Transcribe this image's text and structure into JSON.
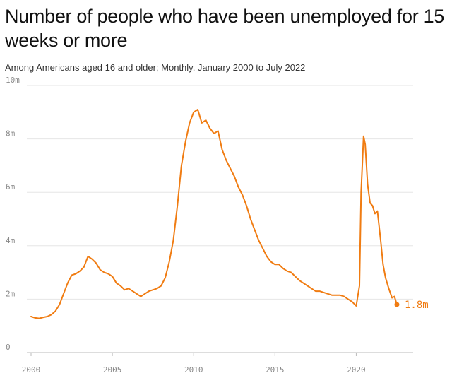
{
  "title": "Number of people who have been unemployed for 15 weeks or more",
  "subtitle": "Among Americans aged 16 and older; Monthly, January 2000 to July 2022",
  "colors": {
    "line": "#f07c12",
    "grid": "#e6e6e6",
    "axis": "#bbbbbb",
    "tick_text": "#888888"
  },
  "chart_data": {
    "type": "line",
    "title": "Number of people who have been unemployed for 15 weeks or more",
    "subtitle": "Among Americans aged 16 and older; Monthly, January 2000 to July 2022",
    "xlabel": "",
    "ylabel": "",
    "xlim": [
      2000,
      2023.5
    ],
    "ylim": [
      0,
      10
    ],
    "grid": true,
    "x_ticks": [
      {
        "value": 2000,
        "label": "2000"
      },
      {
        "value": 2005,
        "label": "2005"
      },
      {
        "value": 2010,
        "label": "2010"
      },
      {
        "value": 2015,
        "label": "2015"
      },
      {
        "value": 2020,
        "label": "2020"
      }
    ],
    "y_ticks": [
      {
        "value": 0,
        "label": "0"
      },
      {
        "value": 2,
        "label": "2m"
      },
      {
        "value": 4,
        "label": "4m"
      },
      {
        "value": 6,
        "label": "6m"
      },
      {
        "value": 8,
        "label": "8m"
      },
      {
        "value": 10,
        "label": "10m"
      }
    ],
    "end_label": "1.8m",
    "series": [
      {
        "values_unit": "millions",
        "x": [
          2000.0,
          2000.25,
          2000.5,
          2000.75,
          2001.0,
          2001.25,
          2001.5,
          2001.75,
          2002.0,
          2002.25,
          2002.5,
          2002.75,
          2003.0,
          2003.25,
          2003.5,
          2003.75,
          2004.0,
          2004.25,
          2004.5,
          2004.75,
          2005.0,
          2005.25,
          2005.5,
          2005.75,
          2006.0,
          2006.25,
          2006.5,
          2006.75,
          2007.0,
          2007.25,
          2007.5,
          2007.75,
          2008.0,
          2008.25,
          2008.5,
          2008.75,
          2009.0,
          2009.25,
          2009.5,
          2009.75,
          2010.0,
          2010.25,
          2010.5,
          2010.75,
          2011.0,
          2011.25,
          2011.5,
          2011.75,
          2012.0,
          2012.25,
          2012.5,
          2012.75,
          2013.0,
          2013.25,
          2013.5,
          2013.75,
          2014.0,
          2014.25,
          2014.5,
          2014.75,
          2015.0,
          2015.25,
          2015.5,
          2015.75,
          2016.0,
          2016.25,
          2016.5,
          2016.75,
          2017.0,
          2017.25,
          2017.5,
          2017.75,
          2018.0,
          2018.25,
          2018.5,
          2018.75,
          2019.0,
          2019.25,
          2019.5,
          2019.75,
          2020.0,
          2020.2,
          2020.3,
          2020.45,
          2020.55,
          2020.7,
          2020.85,
          2021.0,
          2021.15,
          2021.3,
          2021.5,
          2021.65,
          2021.8,
          2022.0,
          2022.2,
          2022.35,
          2022.5
        ],
        "values": [
          1.35,
          1.3,
          1.28,
          1.32,
          1.35,
          1.42,
          1.55,
          1.8,
          2.2,
          2.6,
          2.9,
          2.95,
          3.05,
          3.2,
          3.6,
          3.5,
          3.35,
          3.1,
          3.0,
          2.95,
          2.85,
          2.6,
          2.5,
          2.35,
          2.4,
          2.3,
          2.2,
          2.1,
          2.2,
          2.3,
          2.35,
          2.4,
          2.5,
          2.8,
          3.4,
          4.2,
          5.5,
          7.0,
          7.9,
          8.6,
          9.0,
          9.1,
          8.6,
          8.7,
          8.4,
          8.2,
          8.3,
          7.6,
          7.2,
          6.9,
          6.6,
          6.2,
          5.9,
          5.5,
          5.0,
          4.6,
          4.2,
          3.9,
          3.6,
          3.4,
          3.3,
          3.3,
          3.15,
          3.05,
          3.0,
          2.85,
          2.7,
          2.6,
          2.5,
          2.4,
          2.3,
          2.3,
          2.25,
          2.2,
          2.15,
          2.15,
          2.15,
          2.1,
          2.0,
          1.9,
          1.75,
          2.5,
          6.0,
          8.1,
          7.8,
          6.3,
          5.6,
          5.5,
          5.2,
          5.3,
          4.2,
          3.3,
          2.8,
          2.4,
          2.05,
          2.1,
          1.8
        ]
      }
    ]
  }
}
